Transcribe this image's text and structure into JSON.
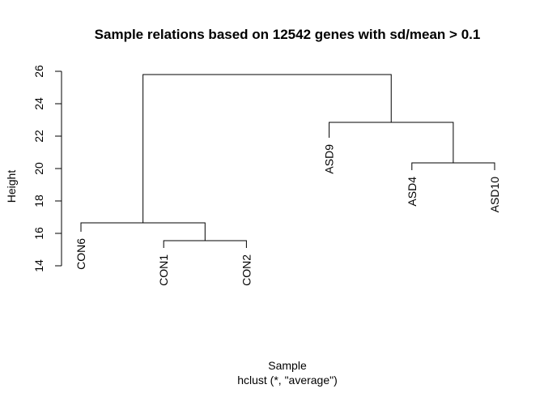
{
  "chart_data": {
    "type": "dendrogram",
    "title": "Sample relations based on 12542 genes with sd/mean > 0.1",
    "ylabel": "Height",
    "xlabel": "Sample",
    "sublabel": "hclust (*, \"average\")",
    "ylim": [
      14,
      26
    ],
    "yticks": [
      14,
      16,
      18,
      20,
      22,
      24,
      26
    ],
    "leaves": [
      {
        "label": "CON6",
        "height": 16.1
      },
      {
        "label": "CON1",
        "height": 15.1
      },
      {
        "label": "CON2",
        "height": 15.1
      },
      {
        "label": "ASD9",
        "height": 21.9
      },
      {
        "label": "ASD4",
        "height": 19.9
      },
      {
        "label": "ASD10",
        "height": 19.9
      }
    ],
    "merges": [
      {
        "id": "m1",
        "left": {
          "leaf": 1
        },
        "right": {
          "leaf": 2
        },
        "height": 15.55
      },
      {
        "id": "m2",
        "left": {
          "leaf": 0
        },
        "right": {
          "node": "m1"
        },
        "height": 16.65
      },
      {
        "id": "m3",
        "left": {
          "leaf": 4
        },
        "right": {
          "leaf": 5
        },
        "height": 20.35
      },
      {
        "id": "m4",
        "left": {
          "leaf": 3
        },
        "right": {
          "node": "m3"
        },
        "height": 22.85
      },
      {
        "id": "m5",
        "left": {
          "node": "m2"
        },
        "right": {
          "node": "m4"
        },
        "height": 25.8
      }
    ]
  }
}
